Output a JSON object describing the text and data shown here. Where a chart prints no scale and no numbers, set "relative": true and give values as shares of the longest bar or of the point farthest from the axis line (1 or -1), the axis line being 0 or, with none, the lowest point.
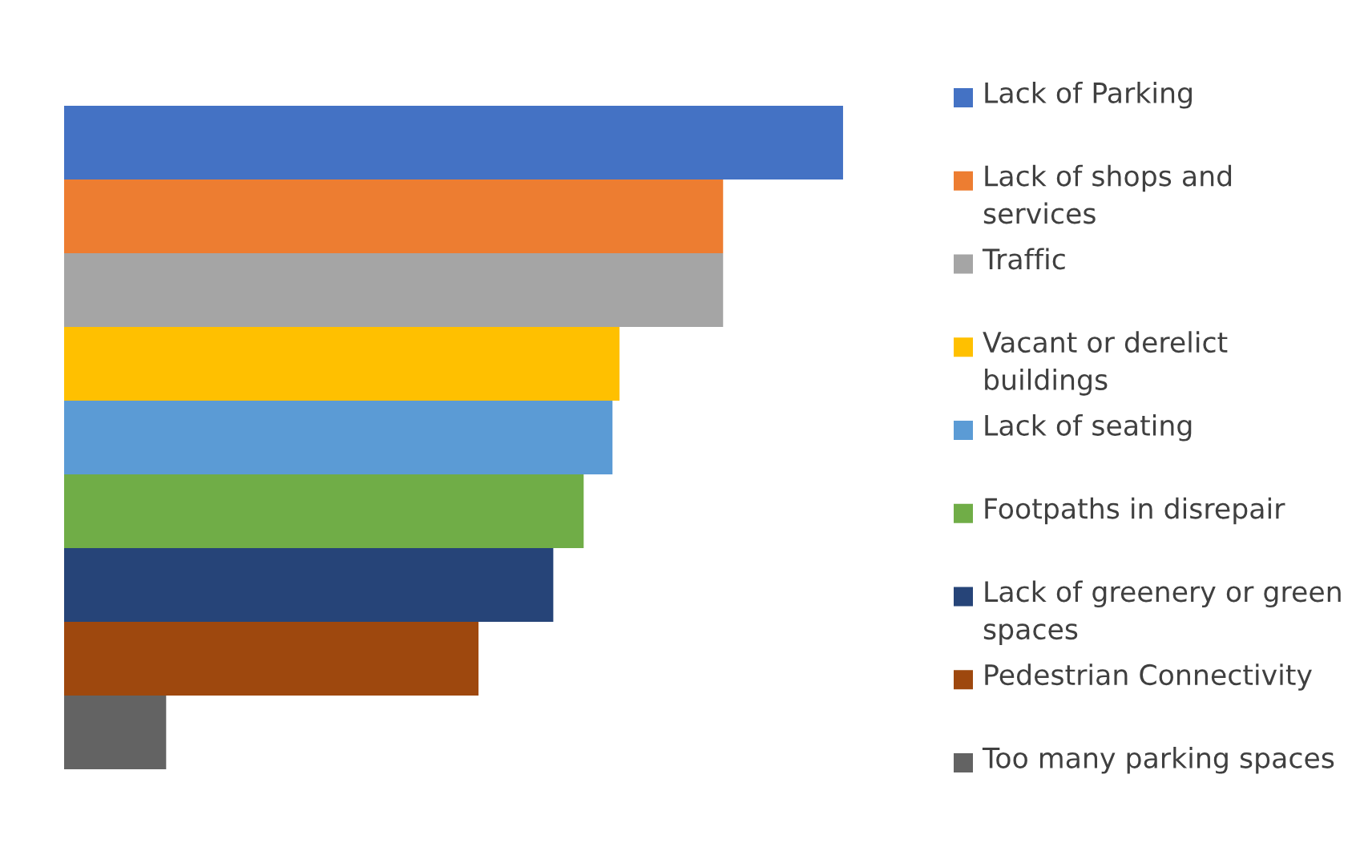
{
  "chart_data": {
    "type": "bar",
    "orientation": "horizontal",
    "stacked": true,
    "relative": true,
    "legend": "right",
    "grid": false,
    "categories": [
      null,
      null,
      null,
      null,
      null,
      null,
      null,
      null,
      null
    ],
    "series": [
      {
        "name": "Lack of Parking",
        "color": "#4472c4",
        "values": [
          1,
          null,
          null,
          null,
          null,
          null,
          null,
          null,
          null
        ]
      },
      {
        "name": "Lack of shops and services",
        "color": "#ed7d31",
        "values": [
          null,
          0.846,
          null,
          null,
          null,
          null,
          null,
          null,
          null
        ]
      },
      {
        "name": "Traffic",
        "color": "#a5a5a5",
        "values": [
          null,
          null,
          0.846,
          null,
          null,
          null,
          null,
          null,
          null
        ]
      },
      {
        "name": "Vacant or derelict buildings",
        "color": "#ffc000",
        "values": [
          null,
          null,
          null,
          0.713,
          null,
          null,
          null,
          null,
          null
        ]
      },
      {
        "name": "Lack of seating",
        "color": "#5b9bd5",
        "values": [
          null,
          null,
          null,
          null,
          0.704,
          null,
          null,
          null,
          null
        ]
      },
      {
        "name": "Footpaths in disrepair",
        "color": "#70ad47",
        "values": [
          null,
          null,
          null,
          null,
          null,
          0.667,
          null,
          null,
          null
        ]
      },
      {
        "name": "Lack of greenery or green spaces",
        "color": "#264478",
        "values": [
          null,
          null,
          null,
          null,
          null,
          null,
          0.628,
          null,
          null
        ]
      },
      {
        "name": "Pedestrian Connectivity",
        "color": "#9e480e",
        "values": [
          null,
          null,
          null,
          null,
          null,
          null,
          null,
          0.532,
          null
        ]
      },
      {
        "name": "Too many parking spaces",
        "color": "#636363",
        "values": [
          null,
          null,
          null,
          null,
          null,
          null,
          null,
          null,
          0.131
        ]
      }
    ]
  }
}
